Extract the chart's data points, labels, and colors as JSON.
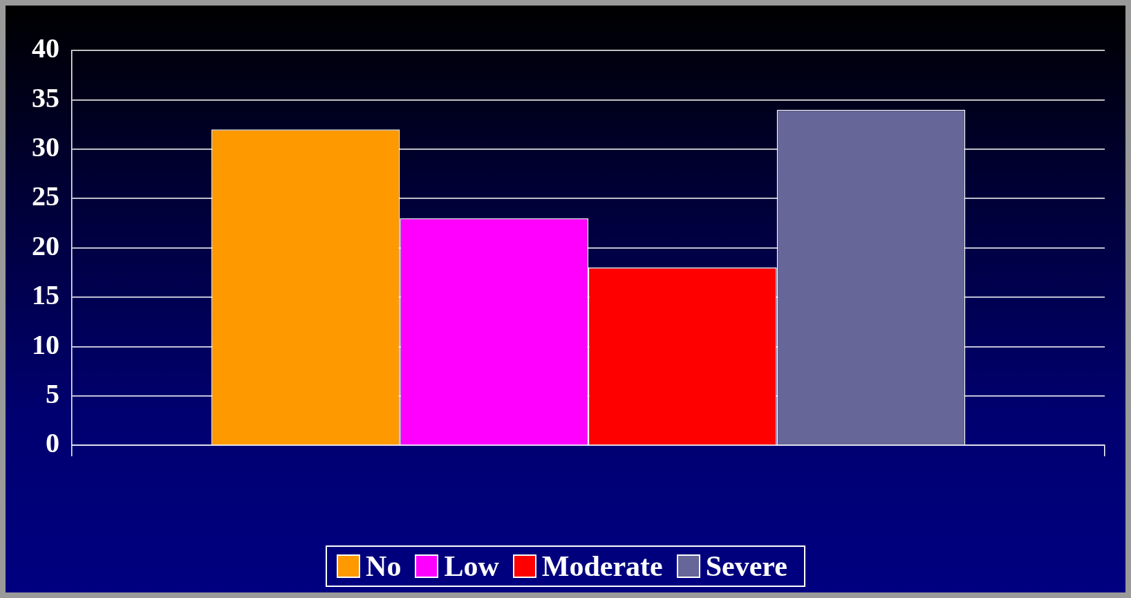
{
  "chart_data": {
    "type": "bar",
    "categories": [
      null
    ],
    "series": [
      {
        "name": "No",
        "color": "#ff9900",
        "values": [
          32
        ]
      },
      {
        "name": "Low",
        "color": "#ff00ff",
        "values": [
          23
        ]
      },
      {
        "name": "Moderate",
        "color": "#ff0000",
        "values": [
          18
        ]
      },
      {
        "name": "Severe",
        "color": "#666699",
        "values": [
          34
        ]
      }
    ],
    "ylim": [
      0,
      40
    ],
    "yticks": [
      0,
      5,
      10,
      15,
      20,
      25,
      30,
      35,
      40
    ],
    "grid": "y",
    "legend": "bottom"
  }
}
